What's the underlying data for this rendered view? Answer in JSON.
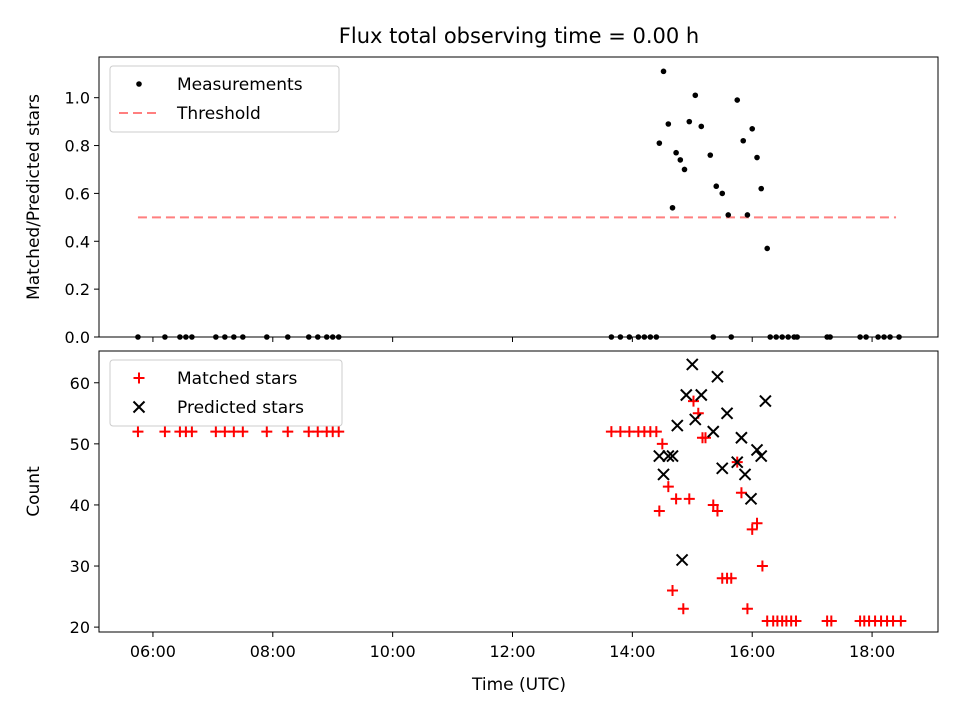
{
  "title": "Flux total observing time = 0.00 h",
  "xlabel": "Time (UTC)",
  "x_tick_labels": [
    "06:00",
    "08:00",
    "10:00",
    "12:00",
    "14:00",
    "16:00",
    "18:00"
  ],
  "colors": {
    "measurement": "#000000",
    "threshold": "#ff7f7f",
    "matched": "#ff0000",
    "predicted": "#000000"
  },
  "chart_data": [
    {
      "type": "scatter",
      "ylabel": "Matched/Predicted stars",
      "xlim": [
        5.1,
        19.1
      ],
      "ylim": [
        0,
        1.17
      ],
      "y_ticks": [
        0.0,
        0.2,
        0.4,
        0.6,
        0.8,
        1.0
      ],
      "y_tick_labels": [
        "0.0",
        "0.2",
        "0.4",
        "0.6",
        "0.8",
        "1.0"
      ],
      "legend": {
        "placement": "upper left",
        "entries": [
          "Measurements",
          "Threshold"
        ]
      },
      "threshold": {
        "name": "Threshold",
        "x": [
          5.75,
          18.4
        ],
        "y": 0.5
      },
      "series": [
        {
          "name": "Measurements",
          "x": [
            5.75,
            6.2,
            6.45,
            6.55,
            6.65,
            7.05,
            7.2,
            7.35,
            7.5,
            7.9,
            8.25,
            8.6,
            8.75,
            8.9,
            9.0,
            9.1,
            13.65,
            13.8,
            13.95,
            14.1,
            14.2,
            14.3,
            14.4,
            14.45,
            14.52,
            14.6,
            14.67,
            14.73,
            14.8,
            14.87,
            14.95,
            15.05,
            15.15,
            15.3,
            15.4,
            15.5,
            15.6,
            15.75,
            15.85,
            15.92,
            16.0,
            16.08,
            16.15,
            16.25,
            15.35,
            15.65,
            16.3,
            16.4,
            16.5,
            16.6,
            16.7,
            16.75,
            17.25,
            17.3,
            17.8,
            17.9,
            18.1,
            18.2,
            18.3,
            18.45
          ],
          "y": [
            0,
            0,
            0,
            0,
            0,
            0,
            0,
            0,
            0,
            0,
            0,
            0,
            0,
            0,
            0,
            0,
            0,
            0,
            0,
            0,
            0,
            0,
            0,
            0.81,
            1.11,
            0.89,
            0.54,
            0.77,
            0.74,
            0.7,
            0.9,
            1.01,
            0.88,
            0.76,
            0.63,
            0.6,
            0.51,
            0.99,
            0.82,
            0.51,
            0.87,
            0.75,
            0.62,
            0.37,
            0,
            0,
            0,
            0,
            0,
            0,
            0,
            0,
            0,
            0,
            0,
            0,
            0,
            0,
            0,
            0
          ]
        }
      ]
    },
    {
      "type": "scatter",
      "ylabel": "Count",
      "xlim": [
        5.1,
        19.1
      ],
      "ylim": [
        19.2,
        65.2
      ],
      "y_ticks": [
        20,
        30,
        40,
        50,
        60
      ],
      "y_tick_labels": [
        "20",
        "30",
        "40",
        "50",
        "60"
      ],
      "legend": {
        "placement": "upper left",
        "entries": [
          "Matched stars",
          "Predicted stars"
        ]
      },
      "series": [
        {
          "name": "Matched stars",
          "x": [
            5.75,
            6.2,
            6.45,
            6.55,
            6.65,
            7.05,
            7.2,
            7.35,
            7.5,
            7.9,
            8.25,
            8.6,
            8.75,
            8.9,
            9.0,
            9.1,
            13.65,
            13.8,
            13.95,
            14.1,
            14.2,
            14.3,
            14.4,
            14.45,
            14.5,
            14.6,
            14.67,
            14.73,
            14.85,
            14.95,
            15.02,
            15.1,
            15.17,
            15.22,
            15.35,
            15.42,
            15.5,
            15.58,
            15.65,
            15.75,
            15.82,
            15.92,
            16.0,
            16.08,
            16.17,
            16.25,
            16.35,
            16.42,
            16.5,
            16.57,
            16.65,
            16.73,
            17.25,
            17.32,
            17.8,
            17.87,
            17.95,
            18.05,
            18.15,
            18.25,
            18.35,
            18.48
          ],
          "y": [
            52,
            52,
            52,
            52,
            52,
            52,
            52,
            52,
            52,
            52,
            52,
            52,
            52,
            52,
            52,
            52,
            52,
            52,
            52,
            52,
            52,
            52,
            52,
            39,
            50,
            43,
            26,
            41,
            23,
            41,
            57,
            55,
            51,
            51,
            40,
            39,
            28,
            28,
            28,
            47,
            42,
            23,
            36,
            37,
            30,
            21,
            21,
            21,
            21,
            21,
            21,
            21,
            21,
            21,
            21,
            21,
            21,
            21,
            21,
            21,
            21,
            21
          ]
        },
        {
          "name": "Predicted stars",
          "x": [
            14.45,
            14.52,
            14.6,
            14.67,
            14.75,
            14.83,
            14.9,
            15.0,
            15.05,
            15.15,
            15.35,
            15.42,
            15.5,
            15.58,
            15.75,
            15.82,
            15.88,
            15.98,
            16.08,
            16.15,
            16.22
          ],
          "y": [
            48,
            45,
            48,
            48,
            53,
            31,
            58,
            63,
            54,
            58,
            52,
            61,
            46,
            55,
            47,
            51,
            45,
            41,
            49,
            48,
            57
          ]
        }
      ]
    }
  ]
}
